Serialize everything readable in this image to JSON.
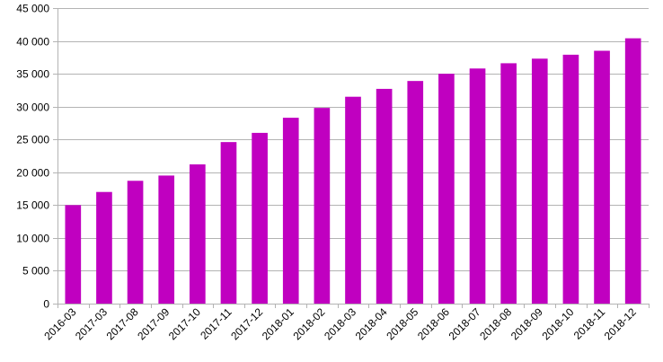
{
  "chart_data": {
    "type": "bar",
    "title": "",
    "xlabel": "",
    "ylabel": "",
    "categories": [
      "2016-03",
      "2017-03",
      "2017-08",
      "2017-09",
      "2017-10",
      "2017-11",
      "2017-12",
      "2018-01",
      "2018-02",
      "2018-03",
      "2018-04",
      "2018-05",
      "2018-06",
      "2018-07",
      "2018-08",
      "2018-09",
      "2018-10",
      "2018-11",
      "2018-12"
    ],
    "values": [
      15000,
      17000,
      18700,
      19500,
      21200,
      24600,
      26000,
      28300,
      29800,
      31500,
      32700,
      33900,
      35000,
      35800,
      36600,
      37300,
      37900,
      38500,
      40400
    ],
    "ylim": [
      0,
      45000
    ],
    "yticks": [
      0,
      5000,
      10000,
      15000,
      20000,
      25000,
      30000,
      35000,
      40000,
      45000
    ],
    "ytick_labels": [
      "0",
      "5 000",
      "10 000",
      "15 000",
      "20 000",
      "25 000",
      "30 000",
      "35 000",
      "40 000",
      "45 000"
    ],
    "grid": true,
    "legend": "none",
    "bar_color": "#c000c0",
    "grid_color": "#b3b3b3"
  }
}
